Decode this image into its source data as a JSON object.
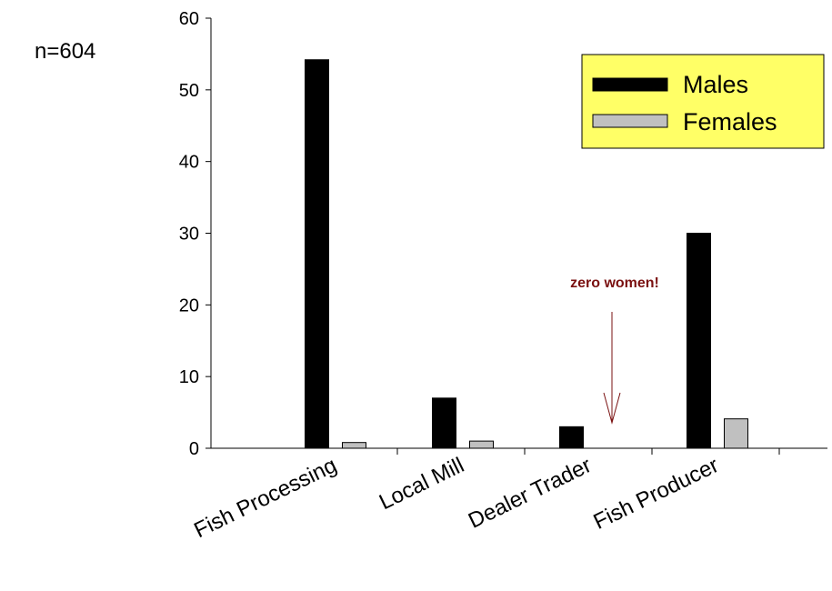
{
  "chart_data": {
    "type": "bar",
    "title": "",
    "xlabel": "",
    "ylabel": "",
    "categories": [
      "Fish Processing",
      "Local Mill",
      "Dealer Trader",
      "Fish Producer"
    ],
    "series": [
      {
        "name": "Males",
        "values": [
          54.2,
          7,
          3,
          30
        ]
      },
      {
        "name": "Females",
        "values": [
          0.8,
          1,
          0,
          4.1
        ]
      }
    ],
    "ylim": [
      0,
      60
    ],
    "yticks": [
      0,
      10,
      20,
      30,
      40,
      50,
      60
    ],
    "grid": false,
    "legend_position": "top-right",
    "note": "n=604",
    "annotation": {
      "text": "zero women!",
      "category": "Dealer Trader"
    }
  },
  "colors": {
    "males": "#000000",
    "females": "#c0c0c0",
    "legend_bg": "#ffff66",
    "annotation": "#7a1010"
  }
}
